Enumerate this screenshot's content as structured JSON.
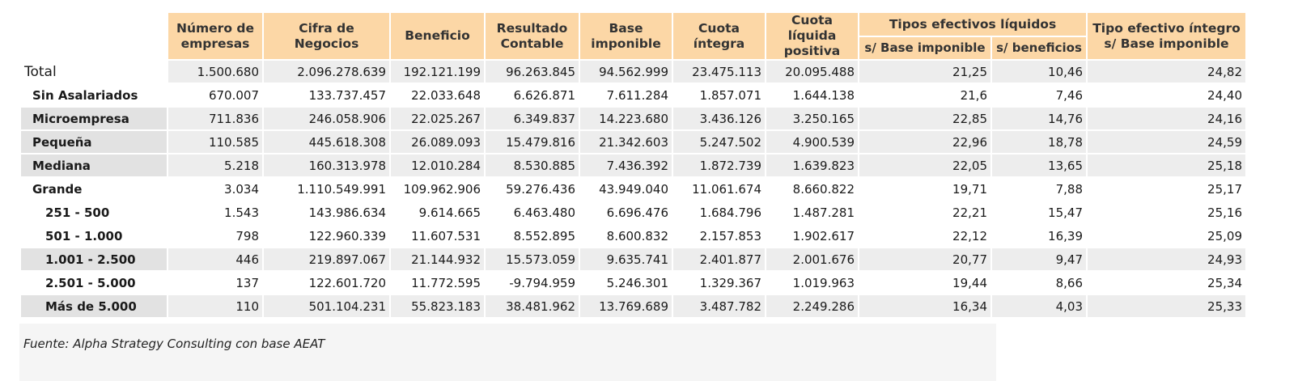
{
  "headers": {
    "empresas": "Número de empresas",
    "cifra": "Cifra de Negocios",
    "beneficio": "Beneficio",
    "resultado": "Resultado Contable",
    "base": "Base imponible",
    "cuota_integra": "Cuota íntegra",
    "cuota_liquida": "Cuota líquida positiva",
    "tipos_liquidos": "Tipos efectivos líquidos",
    "s_base": "s/ Base imponible",
    "s_beneficios": "s/ beneficios",
    "tipo_integro": "Tipo efectivo íntegro s/ Base imponible"
  },
  "rows": [
    {
      "label": "Total",
      "values": [
        "1.500.680",
        "2.096.278.639",
        "192.121.199",
        "96.263.845",
        "94.562.999",
        "23.475.113",
        "20.095.488",
        "21,25",
        "10,46",
        "24,82"
      ]
    },
    {
      "label": "Sin Asalariados",
      "values": [
        "670.007",
        "133.737.457",
        "22.033.648",
        "6.626.871",
        "7.611.284",
        "1.857.071",
        "1.644.138",
        "21,6",
        "7,46",
        "24,40"
      ]
    },
    {
      "label": "Microempresa",
      "values": [
        "711.836",
        "246.058.906",
        "22.025.267",
        "6.349.837",
        "14.223.680",
        "3.436.126",
        "3.250.165",
        "22,85",
        "14,76",
        "24,16"
      ]
    },
    {
      "label": "Pequeña",
      "values": [
        "110.585",
        "445.618.308",
        "26.089.093",
        "15.479.816",
        "21.342.603",
        "5.247.502",
        "4.900.539",
        "22,96",
        "18,78",
        "24,59"
      ]
    },
    {
      "label": "Mediana",
      "values": [
        "5.218",
        "160.313.978",
        "12.010.284",
        "8.530.885",
        "7.436.392",
        "1.872.739",
        "1.639.823",
        "22,05",
        "13,65",
        "25,18"
      ]
    },
    {
      "label": "Grande",
      "values": [
        "3.034",
        "1.110.549.991",
        "109.962.906",
        "59.276.436",
        "43.949.040",
        "11.061.674",
        "8.660.822",
        "19,71",
        "7,88",
        "25,17"
      ]
    },
    {
      "label": "251 - 500",
      "values": [
        "1.543",
        "143.986.634",
        "9.614.665",
        "6.463.480",
        "6.696.476",
        "1.684.796",
        "1.487.281",
        "22,21",
        "15,47",
        "25,16"
      ]
    },
    {
      "label": "501 - 1.000",
      "values": [
        "798",
        "122.960.339",
        "11.607.531",
        "8.552.895",
        "8.600.832",
        "2.157.853",
        "1.902.617",
        "22,12",
        "16,39",
        "25,09"
      ]
    },
    {
      "label": "1.001 - 2.500",
      "values": [
        "446",
        "219.897.067",
        "21.144.932",
        "15.573.059",
        "9.635.741",
        "2.401.877",
        "2.001.676",
        "20,77",
        "9,47",
        "24,93"
      ]
    },
    {
      "label": "2.501 - 5.000",
      "values": [
        "137",
        "122.601.720",
        "11.772.595",
        "-9.794.959",
        "5.246.301",
        "1.329.367",
        "1.019.963",
        "19,44",
        "8,66",
        "25,34"
      ]
    },
    {
      "label": "Más de 5.000",
      "values": [
        "110",
        "501.104.231",
        "55.823.183",
        "38.481.962",
        "13.769.689",
        "3.487.782",
        "2.249.286",
        "16,34",
        "4,03",
        "25,33"
      ]
    }
  ],
  "source": "Fuente: Alpha Strategy Consulting con base AEAT"
}
